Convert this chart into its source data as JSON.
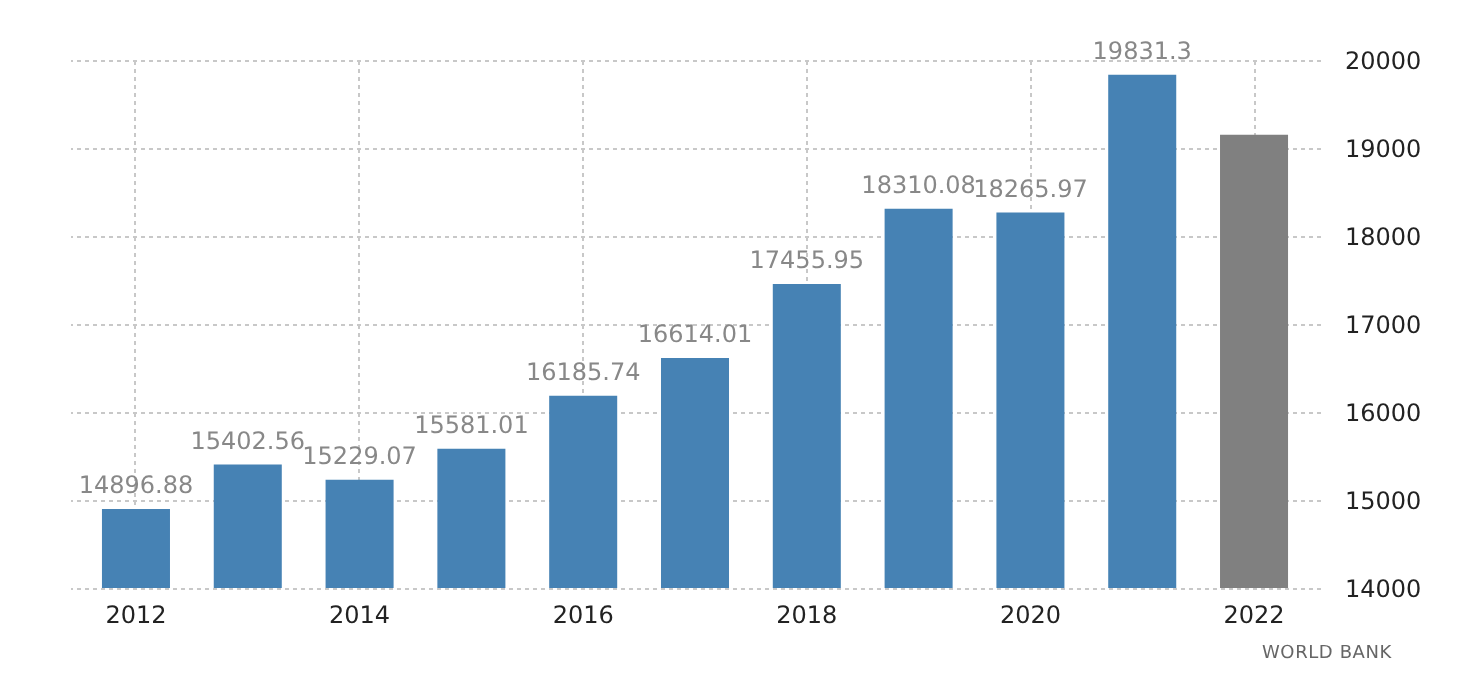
{
  "chart_data": {
    "type": "bar",
    "categories": [
      "2012",
      null,
      "2014",
      null,
      "2016",
      null,
      "2018",
      null,
      "2020",
      null,
      "2022"
    ],
    "values": [
      14896.88,
      15402.56,
      15229.07,
      15581.01,
      16185.74,
      16614.01,
      17455.95,
      18310.08,
      18265.97,
      19831.3,
      19150
    ],
    "value_labels": [
      "14896.88",
      "15402.56",
      "15229.07",
      "15581.01",
      "16185.74",
      "16614.01",
      "17455.95",
      "18310.08",
      "18265.97",
      "19831.3",
      null
    ],
    "colors": [
      "#4682b4",
      "#4682b4",
      "#4682b4",
      "#4682b4",
      "#4682b4",
      "#4682b4",
      "#4682b4",
      "#4682b4",
      "#4682b4",
      "#4682b4",
      "#808080"
    ],
    "ylim": [
      14000,
      20000
    ],
    "yticks": [
      14000,
      15000,
      16000,
      17000,
      18000,
      19000,
      20000
    ],
    "grid": true,
    "annotations": [
      "WORLD BANK"
    ]
  }
}
